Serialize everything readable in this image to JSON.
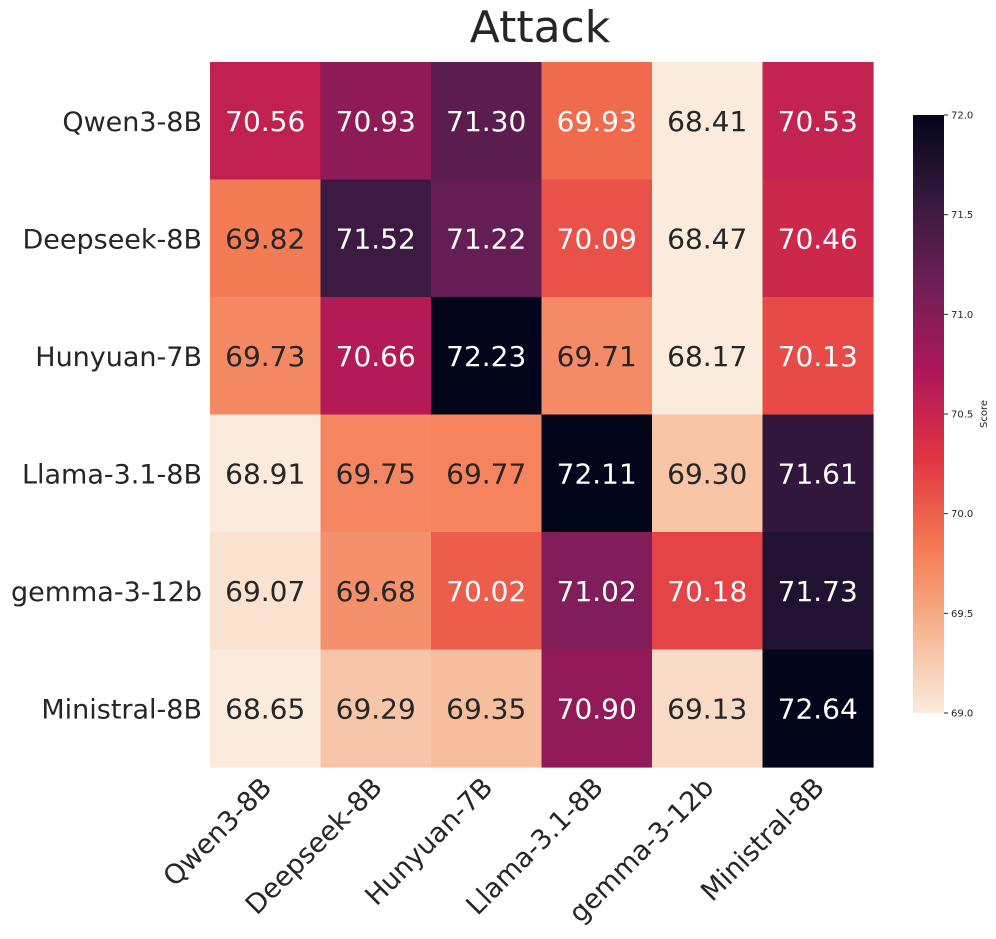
{
  "chart_data": {
    "type": "heatmap",
    "title": "Attack",
    "rows": [
      "Qwen3-8B",
      "Deepseek-8B",
      "Hunyuan-7B",
      "Llama-3.1-8B",
      "gemma-3-12b",
      "Ministral-8B"
    ],
    "columns": [
      "Qwen3-8B",
      "Deepseek-8B",
      "Hunyuan-7B",
      "Llama-3.1-8B",
      "gemma-3-12b",
      "Ministral-8B"
    ],
    "values": [
      [
        70.56,
        70.93,
        71.3,
        69.93,
        68.41,
        70.53
      ],
      [
        69.82,
        71.52,
        71.22,
        70.09,
        68.47,
        70.46
      ],
      [
        69.73,
        70.66,
        72.23,
        69.71,
        68.17,
        70.13
      ],
      [
        68.91,
        69.75,
        69.77,
        72.11,
        69.3,
        71.61
      ],
      [
        69.07,
        69.68,
        70.02,
        71.02,
        70.18,
        71.73
      ],
      [
        68.65,
        69.29,
        69.35,
        70.9,
        69.13,
        72.64
      ]
    ],
    "value_labels": [
      [
        "70.56",
        "70.93",
        "71.30",
        "69.93",
        "68.41",
        "70.53"
      ],
      [
        "69.82",
        "71.52",
        "71.22",
        "70.09",
        "68.47",
        "70.46"
      ],
      [
        "69.73",
        "70.66",
        "72.23",
        "69.71",
        "68.17",
        "70.13"
      ],
      [
        "68.91",
        "69.75",
        "69.77",
        "72.11",
        "69.30",
        "71.61"
      ],
      [
        "69.07",
        "69.68",
        "70.02",
        "71.02",
        "70.18",
        "71.73"
      ],
      [
        "68.65",
        "69.29",
        "69.35",
        "70.90",
        "69.13",
        "72.64"
      ]
    ],
    "colorbar": {
      "label": "Score",
      "range": [
        69.0,
        72.0
      ],
      "ticks": [
        69.0,
        69.5,
        70.0,
        70.5,
        71.0,
        71.5,
        72.0
      ],
      "tick_labels": [
        "69.0",
        "69.5",
        "70.0",
        "70.5",
        "71.0",
        "71.5",
        "72.0"
      ],
      "colormap": "rocket_r",
      "position": "right"
    },
    "colors": {
      "stops": [
        "#faebdd",
        "#f6b48f",
        "#f37651",
        "#e13342",
        "#ad1759",
        "#701f57",
        "#35193e",
        "#03051a"
      ],
      "text_dark": "#262626",
      "text_light": "#ffffff"
    }
  }
}
